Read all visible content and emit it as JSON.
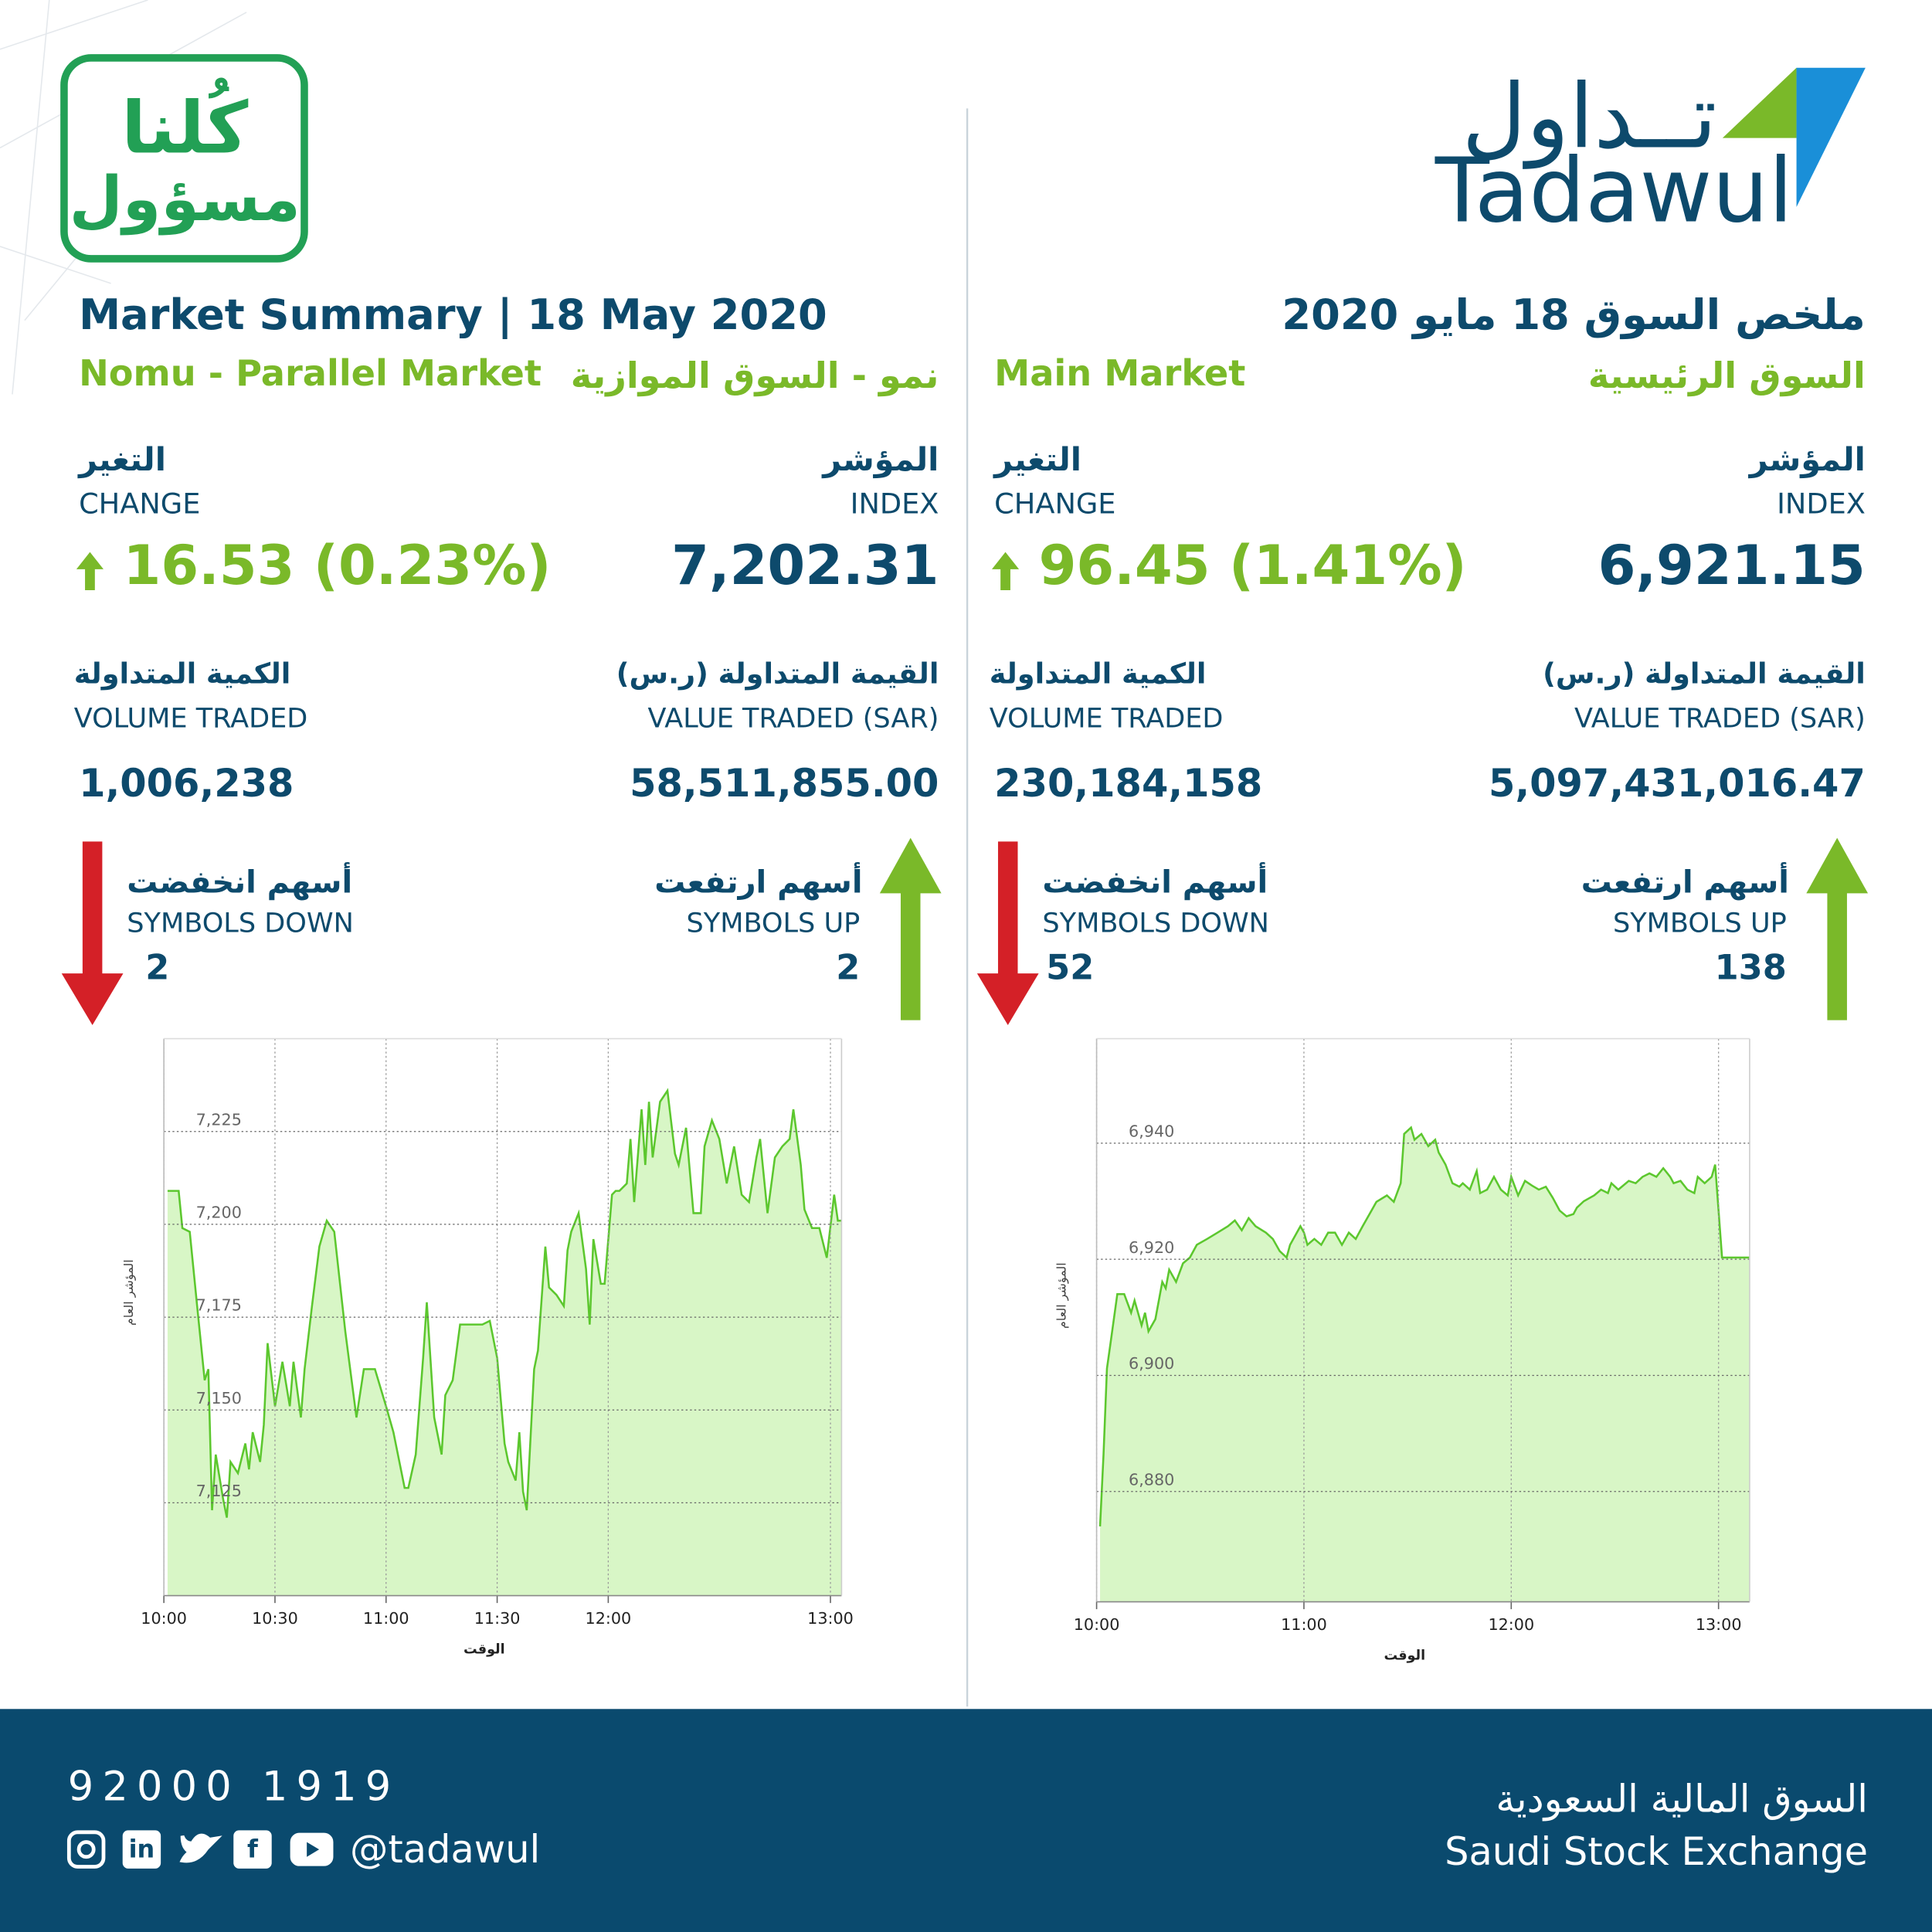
{
  "header": {
    "logo_ar": "تــداول",
    "logo_en": "Tadawul",
    "badge_line1": "كُلنا",
    "badge_line2": "مسؤول",
    "title_en": "Market Summary | 18 May 2020",
    "title_ar": "ملخص السوق 18 مايو 2020"
  },
  "markets": [
    {
      "name_en": "Nomu - Parallel Market",
      "name_ar": "نمو - السوق الموازية",
      "index_label_ar": "المؤشر",
      "index_label_en": "INDEX",
      "index": "7,202.31",
      "change_label_ar": "التغير",
      "change_label_en": "CHANGE",
      "change": "16.53 (0.23%)",
      "value_label_ar": "القيمة المتداولة (ر.س)",
      "value_label_en": "VALUE TRADED (SAR)",
      "value": "58,511,855.00",
      "volume_label_ar": "الكمية المتداولة",
      "volume_label_en": "VOLUME TRADED",
      "volume": "1,006,238",
      "up_label_ar": "أسهم ارتفعت",
      "up_label_en": "SYMBOLS UP",
      "up": "2",
      "down_label_ar": "أسهم انخفضت",
      "down_label_en": "SYMBOLS DOWN",
      "down": "2"
    },
    {
      "name_en": "Main Market",
      "name_ar": "السوق الرئيسية",
      "index_label_ar": "المؤشر",
      "index_label_en": "INDEX",
      "index": "6,921.15",
      "change_label_ar": "التغير",
      "change_label_en": "CHANGE",
      "change": "96.45 (1.41%)",
      "value_label_ar": "القيمة المتداولة (ر.س)",
      "value_label_en": "VALUE TRADED (SAR)",
      "value": "5,097,431,016.47",
      "volume_label_ar": "الكمية المتداولة",
      "volume_label_en": "VOLUME TRADED",
      "volume": "230,184,158",
      "up_label_ar": "أسهم ارتفعت",
      "up_label_en": "SYMBOLS UP",
      "up": "138",
      "down_label_ar": "أسهم انخفضت",
      "down_label_en": "SYMBOLS DOWN",
      "down": "52"
    }
  ],
  "chart_data": [
    {
      "type": "line",
      "xlabel": "الوقت",
      "ylabel": "المؤشر العام",
      "color": "#5cc72e",
      "fill": "#d8f6c6",
      "grid": true,
      "x": [
        601,
        604,
        605,
        607,
        609,
        611,
        612,
        613,
        614,
        616,
        617,
        618,
        620,
        622,
        623,
        624,
        626,
        627,
        628,
        630,
        632,
        634,
        635,
        637,
        638,
        640,
        642,
        644,
        646,
        649,
        652,
        654,
        657,
        660,
        662,
        665,
        666,
        668,
        670,
        671,
        673,
        675,
        676,
        678,
        680,
        682,
        686,
        688,
        690,
        692,
        693,
        695,
        696,
        697,
        698,
        700,
        701,
        703,
        704,
        706,
        708,
        709,
        710,
        712,
        714,
        715,
        716,
        718,
        719,
        721,
        722,
        723,
        725,
        726,
        727,
        729,
        730,
        731,
        732,
        734,
        736,
        738,
        739,
        741,
        743,
        745,
        746,
        748,
        750,
        752,
        754,
        756,
        758,
        760,
        761,
        763,
        765,
        767,
        769,
        770,
        772,
        773,
        775,
        777,
        779,
        781,
        782,
        783
      ],
      "values": [
        7209,
        7209,
        7199,
        7198,
        7178,
        7158,
        7161,
        7123,
        7138,
        7126,
        7121,
        7136,
        7133,
        7141,
        7134,
        7144,
        7136,
        7146,
        7168,
        7151,
        7163,
        7151,
        7163,
        7148,
        7161,
        7178,
        7194,
        7201,
        7198,
        7171,
        7148,
        7161,
        7161,
        7151,
        7144,
        7129,
        7129,
        7138,
        7164,
        7179,
        7148,
        7138,
        7154,
        7158,
        7173,
        7173,
        7173,
        7174,
        7164,
        7141,
        7136,
        7131,
        7144,
        7128,
        7123,
        7161,
        7166,
        7194,
        7183,
        7181,
        7178,
        7193,
        7198,
        7203,
        7188,
        7173,
        7196,
        7184,
        7184,
        7208,
        7209,
        7209,
        7211,
        7223,
        7206,
        7231,
        7216,
        7233,
        7218,
        7233,
        7236,
        7219,
        7216,
        7226,
        7203,
        7203,
        7221,
        7228,
        7223,
        7211,
        7221,
        7208,
        7206,
        7218,
        7223,
        7203,
        7218,
        7221,
        7223,
        7231,
        7216,
        7204,
        7199,
        7199,
        7191,
        7208,
        7201,
        7201
      ],
      "xlim": [
        600,
        783
      ],
      "ylim": [
        7100,
        7250
      ],
      "xticks": [
        {
          "value": 600,
          "label": "10:00"
        },
        {
          "value": 630,
          "label": "10:30"
        },
        {
          "value": 660,
          "label": "11:00"
        },
        {
          "value": 690,
          "label": "11:30"
        },
        {
          "value": 720,
          "label": "12:00"
        },
        {
          "value": 780,
          "label": "13:00"
        }
      ],
      "yticks": [
        {
          "value": 7125,
          "label": "7,125"
        },
        {
          "value": 7150,
          "label": "7,150"
        },
        {
          "value": 7175,
          "label": "7,175"
        },
        {
          "value": 7200,
          "label": "7,200"
        },
        {
          "value": 7225,
          "label": "7,225"
        }
      ]
    },
    {
      "type": "line",
      "xlabel": "الوقت",
      "ylabel": "المؤشر العام",
      "color": "#5cc72e",
      "fill": "#d8f6c6",
      "grid": true,
      "x": [
        601,
        602,
        603,
        604,
        606,
        608,
        610,
        611,
        613,
        614,
        615,
        617,
        619,
        620,
        621,
        623,
        625,
        627,
        629,
        632,
        635,
        638,
        640,
        642,
        644,
        646,
        649,
        651,
        653,
        655,
        656,
        659,
        660,
        661,
        663,
        665,
        667,
        669,
        671,
        673,
        675,
        677,
        679,
        681,
        684,
        686,
        688,
        689,
        691,
        692,
        694,
        696,
        698,
        699,
        701,
        703,
        705,
        706,
        708,
        710,
        711,
        713,
        715,
        717,
        719,
        720,
        722,
        724,
        726,
        728,
        730,
        732,
        734,
        736,
        738,
        739,
        741,
        744,
        746,
        748,
        749,
        751,
        754,
        756,
        758,
        760,
        762,
        764,
        766,
        767,
        769,
        771,
        773,
        774,
        776,
        778,
        779,
        781,
        784,
        789
      ],
      "values": [
        6874.0,
        6886.3,
        6901.2,
        6905.4,
        6914.0,
        6914.0,
        6910.8,
        6912.9,
        6908.6,
        6910.8,
        6907.6,
        6909.7,
        6916.1,
        6915.0,
        6918.2,
        6916.1,
        6919.3,
        6920.3,
        6922.5,
        6923.5,
        6924.6,
        6925.7,
        6926.7,
        6925.0,
        6927.1,
        6925.7,
        6924.6,
        6923.5,
        6921.4,
        6920.3,
        6922.5,
        6925.7,
        6924.6,
        6922.5,
        6923.5,
        6922.5,
        6924.6,
        6924.6,
        6922.5,
        6924.6,
        6923.5,
        6925.7,
        6927.8,
        6929.9,
        6931.0,
        6929.9,
        6933.1,
        6941.6,
        6942.7,
        6940.6,
        6941.6,
        6939.5,
        6940.6,
        6938.4,
        6936.3,
        6933.1,
        6932.5,
        6933.1,
        6932.0,
        6935.2,
        6931.4,
        6932.0,
        6934.2,
        6932.0,
        6931.0,
        6934.2,
        6931.0,
        6933.5,
        6932.7,
        6932.0,
        6932.5,
        6930.6,
        6928.4,
        6927.4,
        6927.8,
        6928.9,
        6930.0,
        6931.0,
        6932.0,
        6931.4,
        6933.1,
        6932.0,
        6933.5,
        6933.1,
        6934.2,
        6934.8,
        6934.2,
        6935.7,
        6934.2,
        6933.1,
        6933.5,
        6932.0,
        6931.4,
        6934.2,
        6933.1,
        6934.2,
        6936.3,
        6920.3,
        6920.3,
        6920.3
      ],
      "xlim": [
        600,
        789
      ],
      "ylim": [
        6861,
        6958
      ],
      "xticks": [
        {
          "value": 600,
          "label": "10:00"
        },
        {
          "value": 660,
          "label": "11:00"
        },
        {
          "value": 720,
          "label": "12:00"
        },
        {
          "value": 780,
          "label": "13:00"
        }
      ],
      "yticks": [
        {
          "value": 6880,
          "label": "6,880"
        },
        {
          "value": 6900,
          "label": "6,900"
        },
        {
          "value": 6920,
          "label": "6,920"
        },
        {
          "value": 6940,
          "label": "6,940"
        }
      ]
    }
  ],
  "footer": {
    "phone": "92000 1919",
    "handle": "@tadawul",
    "exchange_ar": "السوق المالية السعودية",
    "exchange_en": "Saudi Stock Exchange",
    "social": [
      "in",
      "f"
    ]
  }
}
